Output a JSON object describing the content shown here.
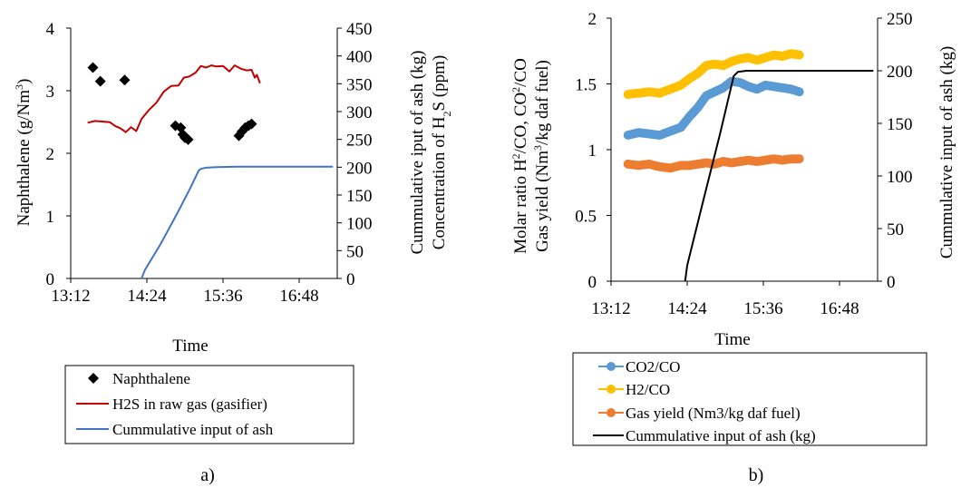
{
  "chart_data": [
    {
      "type": "line",
      "panel_label": "a)",
      "xlabel": "Time",
      "ylabel_left": [
        "Naphthalene  (g/Nm",
        "3",
        ")"
      ],
      "ylabel_right": [
        "Cummulative iput of ash (kg)",
        "Concentration of H",
        "2",
        "S (ppm)"
      ],
      "x_ticks": [
        "13:12",
        "14:24",
        "15:36",
        "16:48"
      ],
      "x_tick_minutes": [
        792,
        864,
        936,
        1008
      ],
      "xlim_minutes": [
        792,
        1044
      ],
      "left_ticks": [
        "0",
        "1",
        "2",
        "3",
        "4"
      ],
      "right_ticks": [
        "0",
        "50",
        "100",
        "150",
        "200",
        "250",
        "300",
        "350",
        "400",
        "450"
      ],
      "ylim_left": [
        0,
        4
      ],
      "ylim_right": [
        0,
        450
      ],
      "legend_position": "below",
      "series": [
        {
          "name": "Naphthalene",
          "axis": "left",
          "marker": "diamond",
          "color": "#000000",
          "points": [
            [
              813,
              3.37
            ],
            [
              820,
              3.15
            ],
            [
              843,
              3.17
            ],
            [
              891,
              2.44
            ],
            [
              896,
              2.41
            ],
            [
              898,
              2.3
            ],
            [
              900,
              2.25
            ],
            [
              903,
              2.22
            ],
            [
              951,
              2.28
            ],
            [
              954,
              2.35
            ],
            [
              957,
              2.41
            ],
            [
              960,
              2.44
            ],
            [
              963,
              2.47
            ]
          ]
        },
        {
          "name": "H2S in raw gas (gasifier)",
          "axis": "right",
          "marker": "none",
          "color": "#C00000",
          "points": [
            [
              808,
              280
            ],
            [
              815,
              283
            ],
            [
              822,
              282
            ],
            [
              829,
              281
            ],
            [
              834,
              274
            ],
            [
              839,
              270
            ],
            [
              844,
              263
            ],
            [
              849,
              272
            ],
            [
              854,
              265
            ],
            [
              859,
              287
            ],
            [
              866,
              303
            ],
            [
              873,
              316
            ],
            [
              880,
              336
            ],
            [
              887,
              346
            ],
            [
              894,
              347
            ],
            [
              899,
              361
            ],
            [
              904,
              363
            ],
            [
              910,
              370
            ],
            [
              915,
              382
            ],
            [
              920,
              379
            ],
            [
              925,
              383
            ],
            [
              930,
              381
            ],
            [
              936,
              382
            ],
            [
              942,
              372
            ],
            [
              947,
              383
            ],
            [
              953,
              377
            ],
            [
              958,
              374
            ],
            [
              963,
              375
            ],
            [
              966,
              361
            ],
            [
              968,
              366
            ],
            [
              971,
              351
            ]
          ]
        },
        {
          "name": "Cummulative input of ash",
          "axis": "right",
          "marker": "none",
          "color": "#4472C4",
          "points": [
            [
              859,
              0
            ],
            [
              862,
              15
            ],
            [
              877,
              62
            ],
            [
              893,
              118
            ],
            [
              905,
              162
            ],
            [
              913,
              194
            ],
            [
              915,
              197
            ],
            [
              920,
              199
            ],
            [
              930,
              200
            ],
            [
              950,
              201
            ],
            [
              1040,
              201
            ]
          ]
        }
      ]
    },
    {
      "type": "line",
      "panel_label": "b)",
      "xlabel": "Time",
      "ylabel_left": [
        "Molar ratio H",
        "2",
        "/CO, CO",
        "2",
        "/CO",
        "Gas yield (Nm",
        "3",
        "/kg daf fuel)"
      ],
      "ylabel_right": [
        "Cummulative input of ash (kg)"
      ],
      "x_ticks": [
        "13:12",
        "14:24",
        "15:36",
        "16:48"
      ],
      "x_tick_minutes": [
        792,
        864,
        936,
        1008
      ],
      "xlim_minutes": [
        792,
        1044
      ],
      "left_ticks": [
        "0",
        "0.5",
        "1",
        "1.5",
        "2"
      ],
      "right_ticks": [
        "0",
        "50",
        "100",
        "150",
        "200",
        "250"
      ],
      "ylim_left": [
        0,
        2
      ],
      "ylim_right": [
        0,
        250
      ],
      "legend_position": "below",
      "series": [
        {
          "name": "CO2/CO",
          "axis": "left",
          "marker": "circle",
          "color": "#5B9BD5",
          "points": [
            [
              808,
              1.11
            ],
            [
              818,
              1.13
            ],
            [
              828,
              1.12
            ],
            [
              838,
              1.11
            ],
            [
              848,
              1.14
            ],
            [
              858,
              1.17
            ],
            [
              866,
              1.25
            ],
            [
              874,
              1.32
            ],
            [
              882,
              1.41
            ],
            [
              890,
              1.44
            ],
            [
              898,
              1.47
            ],
            [
              906,
              1.52
            ],
            [
              914,
              1.51
            ],
            [
              922,
              1.48
            ],
            [
              930,
              1.46
            ],
            [
              938,
              1.49
            ],
            [
              946,
              1.48
            ],
            [
              954,
              1.47
            ],
            [
              962,
              1.46
            ],
            [
              970,
              1.44
            ]
          ]
        },
        {
          "name": "H2/CO",
          "axis": "left",
          "marker": "circle",
          "color": "#FFC000",
          "points": [
            [
              808,
              1.42
            ],
            [
              818,
              1.43
            ],
            [
              828,
              1.44
            ],
            [
              838,
              1.43
            ],
            [
              848,
              1.46
            ],
            [
              858,
              1.49
            ],
            [
              866,
              1.54
            ],
            [
              874,
              1.58
            ],
            [
              882,
              1.64
            ],
            [
              890,
              1.65
            ],
            [
              898,
              1.64
            ],
            [
              906,
              1.67
            ],
            [
              914,
              1.69
            ],
            [
              922,
              1.7
            ],
            [
              930,
              1.68
            ],
            [
              938,
              1.7
            ],
            [
              946,
              1.72
            ],
            [
              954,
              1.71
            ],
            [
              962,
              1.73
            ],
            [
              970,
              1.72
            ]
          ]
        },
        {
          "name": "Gas yield (Nm3/kg daf fuel)",
          "axis": "left",
          "marker": "circle",
          "color": "#ED7D31",
          "points": [
            [
              808,
              0.89
            ],
            [
              818,
              0.88
            ],
            [
              828,
              0.89
            ],
            [
              838,
              0.87
            ],
            [
              848,
              0.86
            ],
            [
              858,
              0.88
            ],
            [
              866,
              0.88
            ],
            [
              874,
              0.89
            ],
            [
              882,
              0.9
            ],
            [
              890,
              0.89
            ],
            [
              898,
              0.91
            ],
            [
              906,
              0.9
            ],
            [
              914,
              0.91
            ],
            [
              922,
              0.92
            ],
            [
              930,
              0.91
            ],
            [
              938,
              0.92
            ],
            [
              946,
              0.93
            ],
            [
              954,
              0.92
            ],
            [
              962,
              0.93
            ],
            [
              970,
              0.93
            ]
          ]
        },
        {
          "name": "Cummulative input of ash (kg)",
          "axis": "right",
          "marker": "none",
          "color": "#000000",
          "points": [
            [
              862,
              0
            ],
            [
              864,
              15
            ],
            [
              880,
              80
            ],
            [
              895,
              140
            ],
            [
              908,
              195
            ],
            [
              912,
              199
            ],
            [
              920,
              200
            ],
            [
              1040,
              200
            ]
          ]
        }
      ]
    }
  ]
}
